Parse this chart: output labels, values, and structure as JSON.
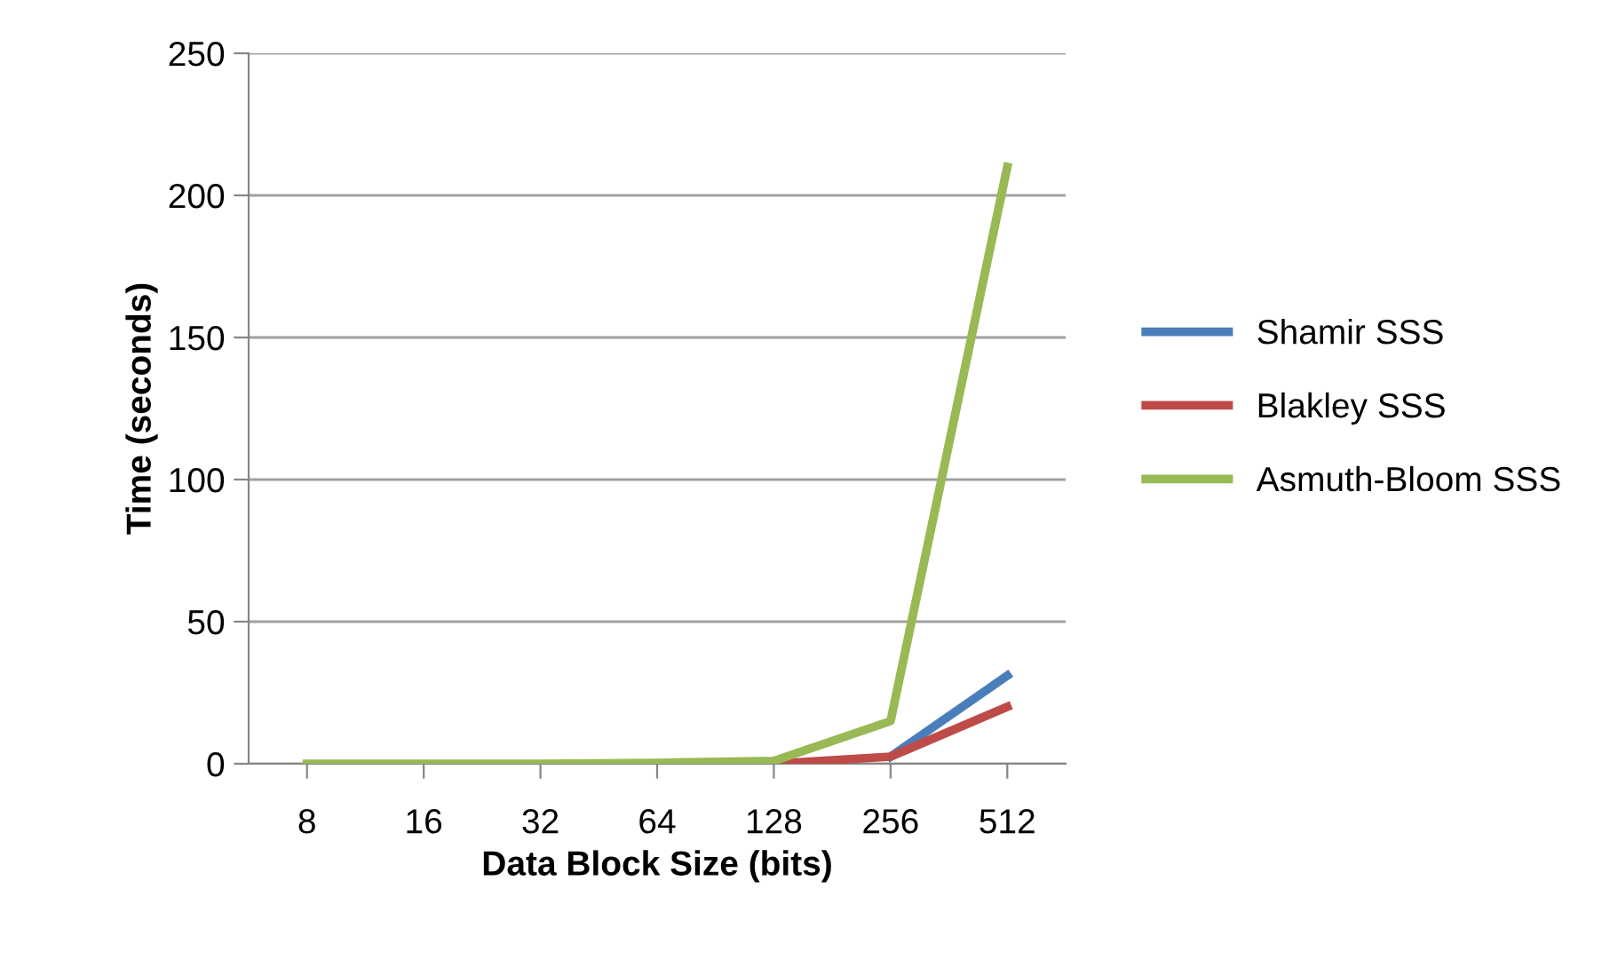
{
  "chart_data": {
    "type": "line",
    "xlabel": "Data Block Size (bits)",
    "ylabel": "Time (seconds)",
    "categories": [
      "8",
      "16",
      "32",
      "64",
      "128",
      "256",
      "512"
    ],
    "series": [
      {
        "name": "Shamir SSS",
        "color": "#4a7ebb",
        "values": [
          null,
          null,
          null,
          null,
          null,
          2.5,
          31
        ]
      },
      {
        "name": "Blakley SSS",
        "color": "#be4b48",
        "values": [
          null,
          null,
          null,
          null,
          0,
          2.5,
          20
        ]
      },
      {
        "name": "Asmuth-Bloom SSS",
        "color": "#98b954",
        "values": [
          0,
          0,
          0,
          0.3,
          1,
          15,
          210
        ]
      }
    ],
    "ylim": [
      0,
      250
    ],
    "yticks": [
      0,
      50,
      100,
      150,
      200,
      250
    ],
    "grid": "y",
    "legend": "right",
    "marker": "none",
    "line_style": "solid"
  }
}
